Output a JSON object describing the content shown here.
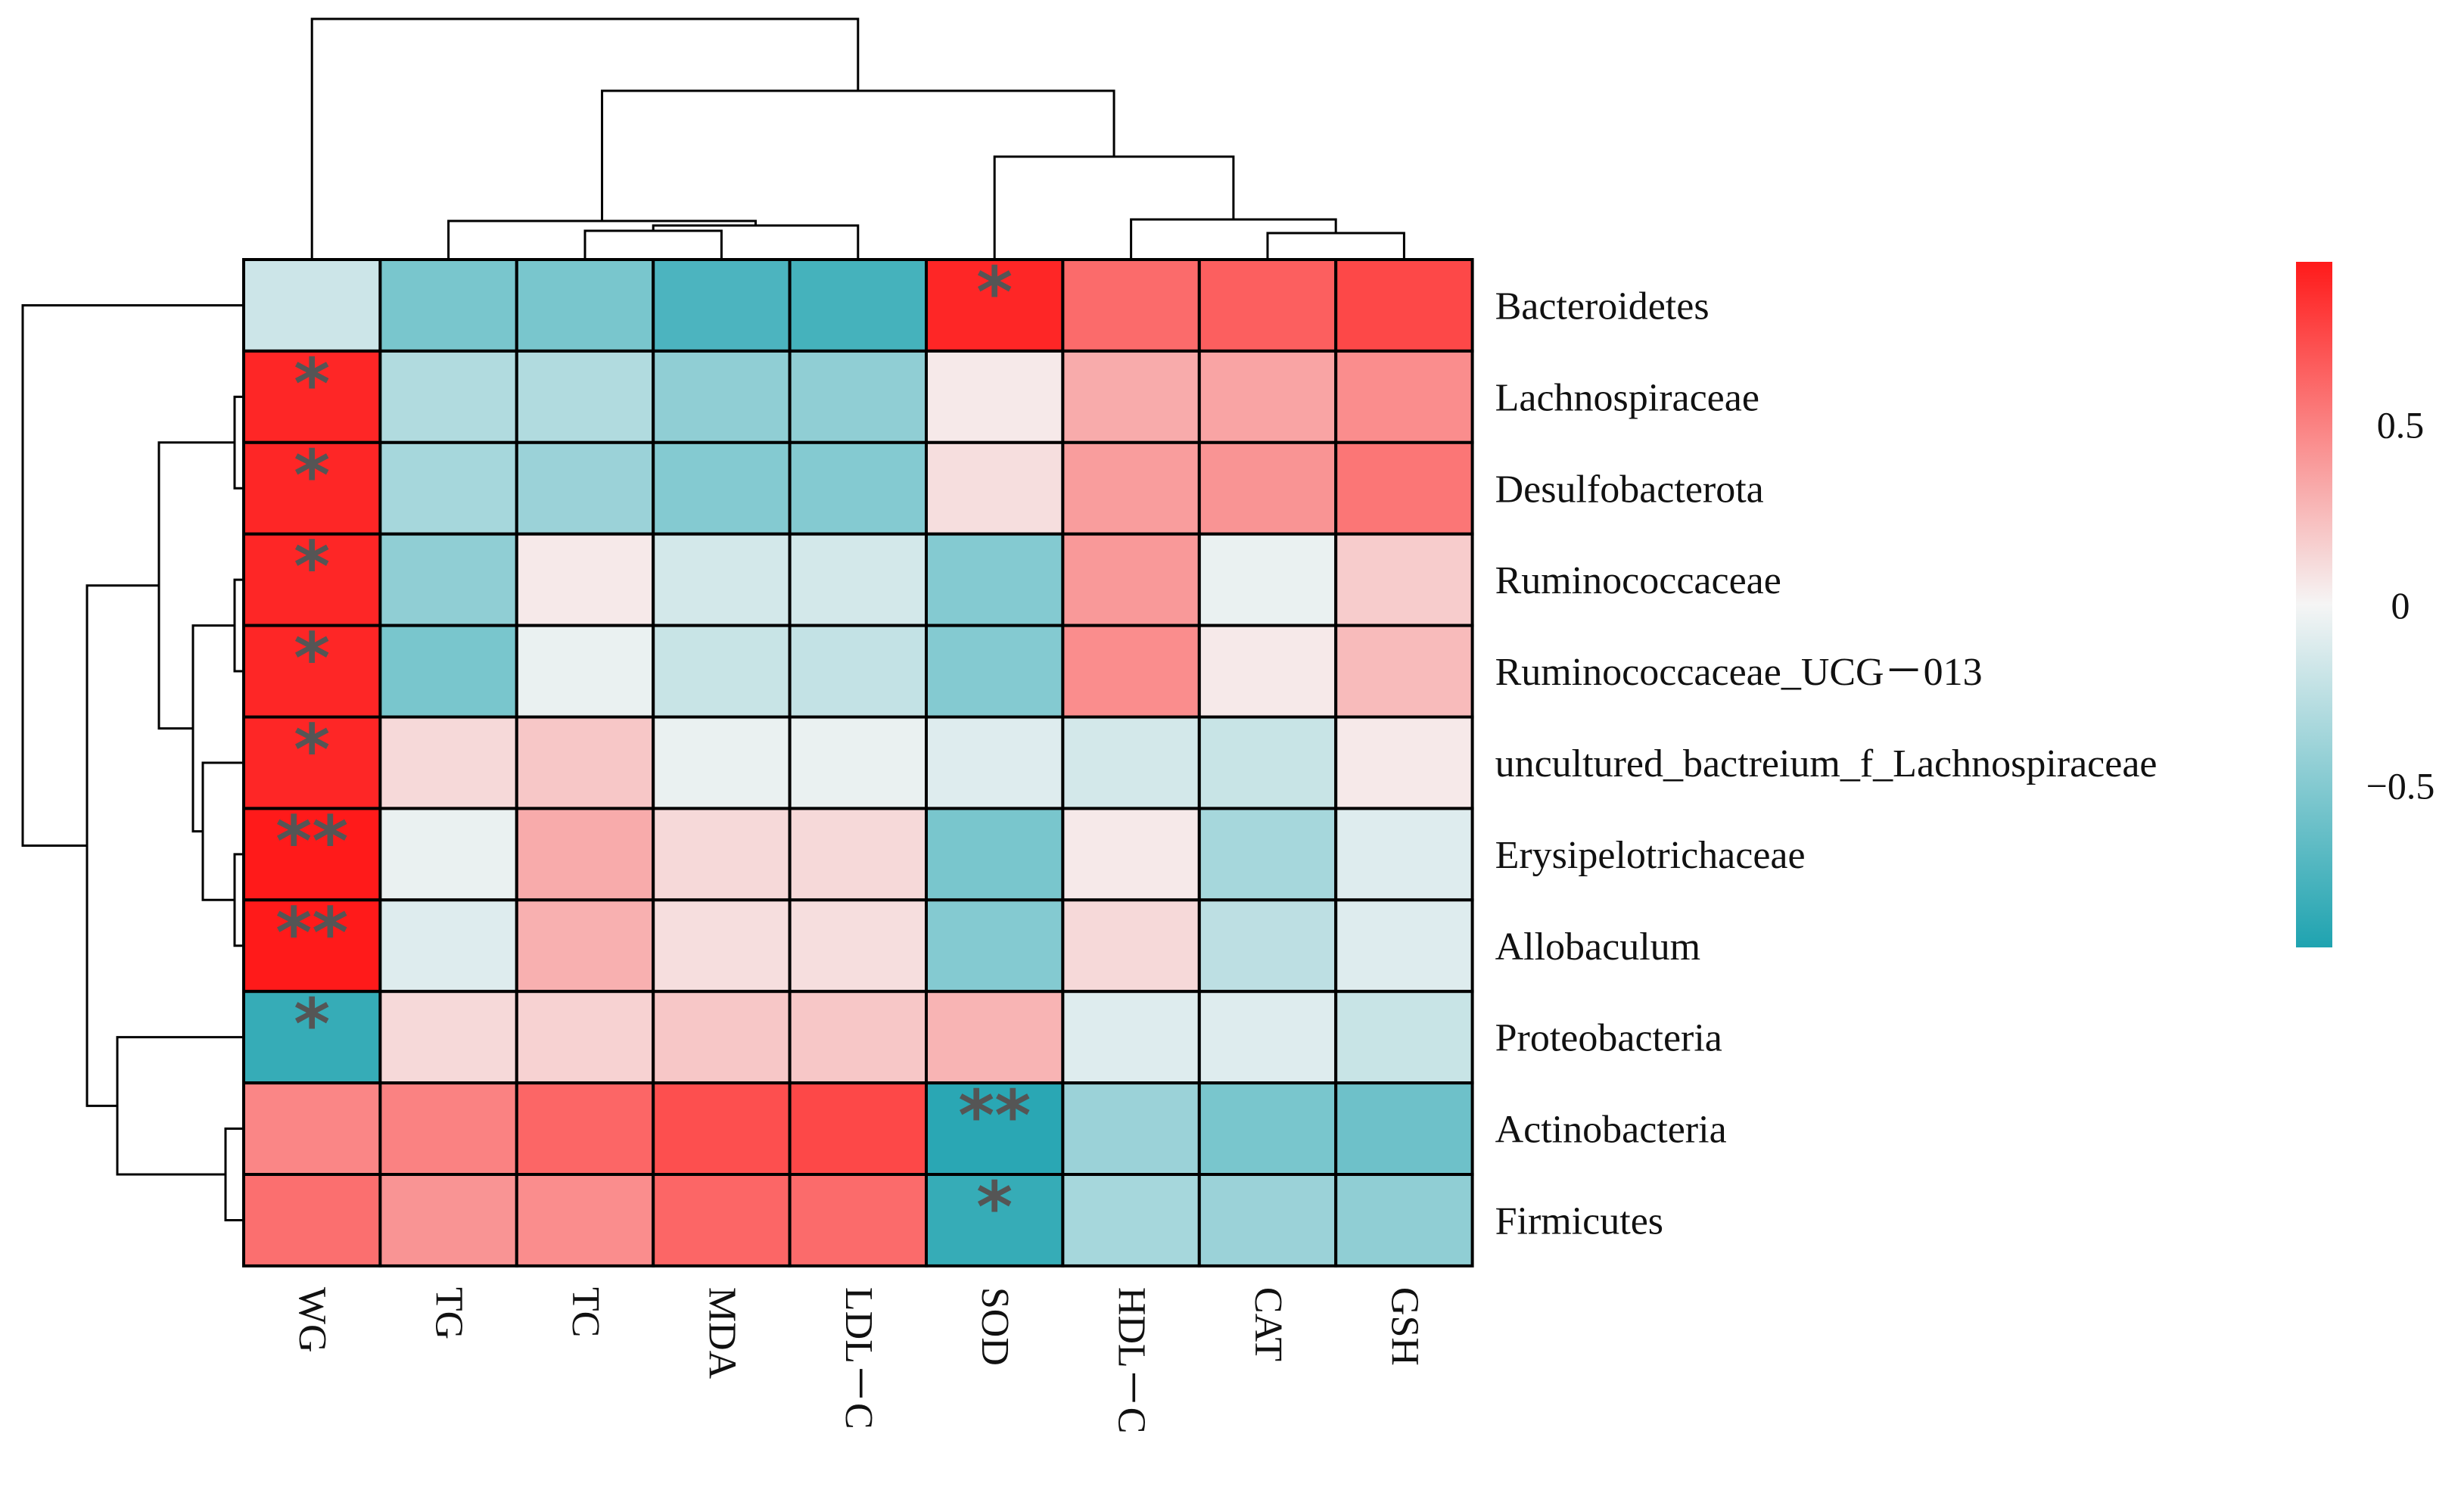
{
  "chart_data": {
    "type": "heatmap",
    "title": "",
    "rows": [
      "Bacteroidetes",
      "Lachnospiraceae",
      "Desulfobacterota",
      "Ruminococcaceae",
      "Ruminococcaceae_UCG－013",
      "uncultured_bactreium_f_Lachnospiraceae",
      "Erysipelotrichaceae",
      "Allobaculum",
      "Proteobacteria",
      "Actinobacteria",
      "Firmicutes"
    ],
    "columns": [
      "WG",
      "TG",
      "TC",
      "MDA",
      "LDL－C",
      "SOD",
      "HDL－C",
      "CAT",
      "GSH"
    ],
    "values": [
      [
        -0.18,
        -0.55,
        -0.55,
        -0.75,
        -0.78,
        0.9,
        0.6,
        0.65,
        0.75
      ],
      [
        0.9,
        -0.3,
        -0.3,
        -0.45,
        -0.45,
        0.05,
        0.32,
        0.35,
        0.45
      ],
      [
        0.9,
        -0.35,
        -0.4,
        -0.5,
        -0.5,
        0.1,
        0.38,
        0.42,
        0.55
      ],
      [
        0.9,
        -0.45,
        0.05,
        -0.15,
        -0.15,
        -0.5,
        0.4,
        -0.05,
        0.18
      ],
      [
        0.9,
        -0.55,
        -0.05,
        -0.2,
        -0.22,
        -0.5,
        0.45,
        0.05,
        0.25
      ],
      [
        0.9,
        0.12,
        0.2,
        -0.05,
        -0.05,
        -0.1,
        -0.15,
        -0.2,
        0.05
      ],
      [
        0.95,
        -0.05,
        0.32,
        0.12,
        0.12,
        -0.55,
        0.05,
        -0.35,
        -0.1
      ],
      [
        0.95,
        -0.1,
        0.3,
        0.1,
        0.1,
        -0.5,
        0.12,
        -0.25,
        -0.1
      ],
      [
        -0.85,
        0.12,
        0.15,
        0.2,
        0.2,
        0.28,
        -0.1,
        -0.1,
        -0.2
      ],
      [
        0.48,
        0.5,
        0.62,
        0.72,
        0.75,
        -0.9,
        -0.4,
        -0.55,
        -0.6
      ],
      [
        0.58,
        0.42,
        0.45,
        0.62,
        0.6,
        -0.85,
        -0.35,
        -0.4,
        -0.45
      ]
    ],
    "significance": [
      [
        "",
        "",
        "",
        "",
        "",
        "*",
        "",
        "",
        ""
      ],
      [
        "*",
        "",
        "",
        "",
        "",
        "",
        "",
        "",
        ""
      ],
      [
        "*",
        "",
        "",
        "",
        "",
        "",
        "",
        "",
        ""
      ],
      [
        "*",
        "",
        "",
        "",
        "",
        "",
        "",
        "",
        ""
      ],
      [
        "*",
        "",
        "",
        "",
        "",
        "",
        "",
        "",
        ""
      ],
      [
        "*",
        "",
        "",
        "",
        "",
        "",
        "",
        "",
        ""
      ],
      [
        "**",
        "",
        "",
        "",
        "",
        "",
        "",
        "",
        ""
      ],
      [
        "**",
        "",
        "",
        "",
        "",
        "",
        "",
        "",
        ""
      ],
      [
        "*",
        "",
        "",
        "",
        "",
        "",
        "",
        "",
        ""
      ],
      [
        "",
        "",
        "",
        "",
        "",
        "**",
        "",
        "",
        ""
      ],
      [
        "",
        "",
        "",
        "",
        "",
        "*",
        "",
        "",
        ""
      ]
    ],
    "colorbar": {
      "range": [
        -0.95,
        0.95
      ],
      "ticks": [
        0.5,
        0,
        -0.5
      ],
      "tick_labels": [
        "0.5",
        "0",
        "−0.5"
      ],
      "colors": {
        "low": "#1fa3b0",
        "mid": "#f5f5f5",
        "high": "#ff1a1a"
      }
    },
    "column_dendrogram": true,
    "row_dendrogram": true
  }
}
